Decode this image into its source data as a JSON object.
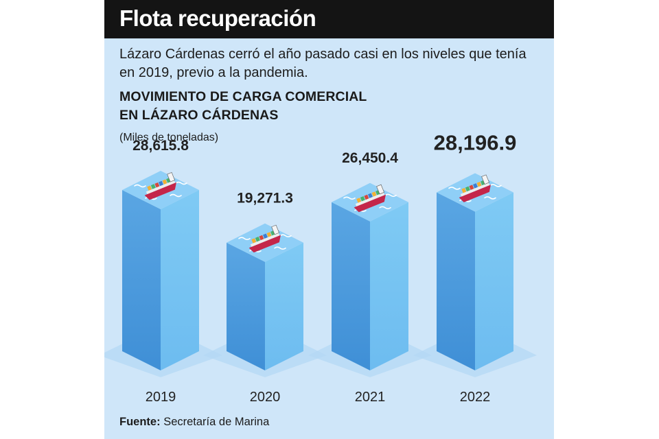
{
  "header": {
    "title": "Flota recuperación",
    "subtitle": "Lázaro Cárdenas cerró el año pasado casi en los niveles que tenía en 2019, previo a la pandemia.",
    "heading_line1": "MOVIMIENTO DE CARGA COMERCIAL",
    "heading_line2": "EN LÁZARO CÁRDENAS",
    "units": "(Miles de toneladas)"
  },
  "chart_data": {
    "type": "bar",
    "categories": [
      "2019",
      "2020",
      "2021",
      "2022"
    ],
    "values": [
      28615.8,
      19271.3,
      26450.4,
      28196.9
    ],
    "value_labels": [
      "28,615.8",
      "19,271.3",
      "26,450.4",
      "28,196.9"
    ],
    "highlight_index": 3,
    "ylim": [
      0,
      30000
    ],
    "grid": false,
    "legend": "none"
  },
  "footer": {
    "source_label": "Fuente:",
    "source_text": "Secretaría de Marina"
  },
  "colors": {
    "panel_bg": "#cfe6f9",
    "title_bar": "#141414",
    "bar_front": "#3f8fd6",
    "bar_side": "#6dbcf0",
    "bar_top": "#8fcff7",
    "floor": "#b4d8f4",
    "ship_hull": "#c4264a"
  },
  "icons": {
    "bar_top_icon": "cargo-ship-icon"
  }
}
